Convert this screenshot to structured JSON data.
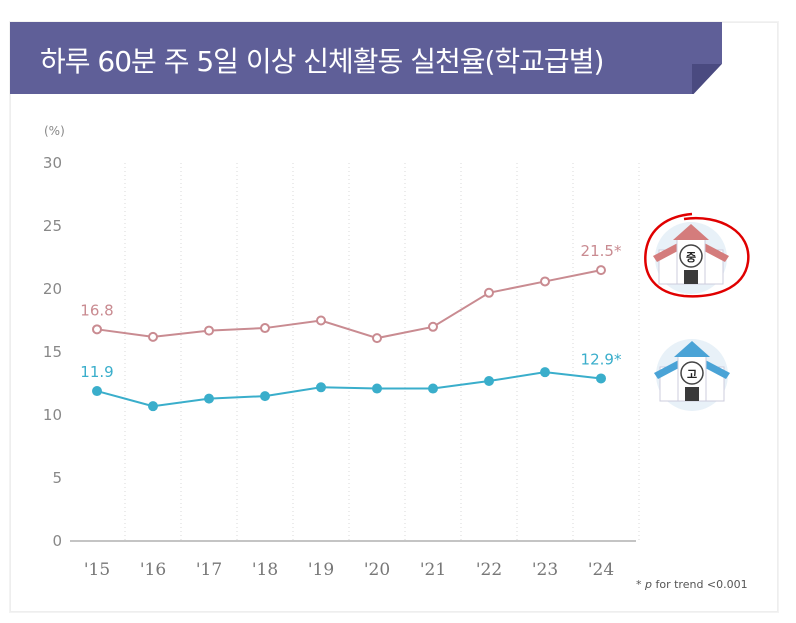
{
  "header": {
    "title": "하루 60분 주 5일 이상 신체활동 실천율(학교급별)"
  },
  "chart_data": {
    "type": "line",
    "title": "하루 60분 주 5일 이상 신체활동 실천율(학교급별)",
    "ylabel": "(%)",
    "ylim": [
      0,
      30
    ],
    "yticks": [
      "0",
      "5",
      "10",
      "15",
      "20",
      "25",
      "30"
    ],
    "categories": [
      "'15",
      "'16",
      "'17",
      "'18",
      "'19",
      "'20",
      "'21",
      "'22",
      "'23",
      "'24"
    ],
    "grid": "vertical dotted",
    "series": [
      {
        "name": "중",
        "color": "#c98b91",
        "values": [
          16.8,
          16.2,
          16.7,
          16.9,
          17.5,
          16.1,
          17.0,
          19.7,
          20.6,
          21.5
        ],
        "labels": {
          "first": "16.8",
          "last": "21.5*"
        }
      },
      {
        "name": "고",
        "color": "#3aaecb",
        "values": [
          11.9,
          10.7,
          11.3,
          11.5,
          12.2,
          12.1,
          12.1,
          12.7,
          13.4,
          12.9
        ],
        "labels": {
          "first": "11.9",
          "last": "12.9*"
        }
      }
    ],
    "annotation_color": "#e00000"
  },
  "footnote": {
    "star": "*",
    "p": "p",
    "text": "for trend <0.001"
  }
}
